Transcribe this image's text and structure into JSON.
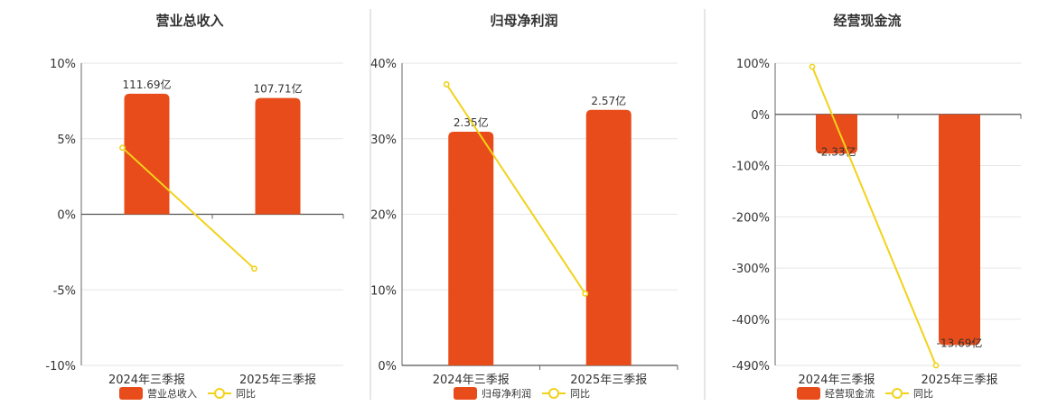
{
  "colors": {
    "bar": "#E84C1A",
    "line": "#F2D21B",
    "marker_fill": "#ffffff"
  },
  "chart_data": [
    {
      "type": "bar",
      "title": "营业总收入",
      "categories": [
        "2024年三季报",
        "2025年三季报"
      ],
      "bar_values": [
        111.69,
        107.71
      ],
      "bar_labels": [
        "111.69亿",
        "107.71亿"
      ],
      "yoy_values": [
        4.4,
        -3.6
      ],
      "y_ticks": [
        "10%",
        "5%",
        "0%",
        "-5%",
        "-10%"
      ],
      "y_tick_values": [
        10,
        5,
        0,
        -5,
        -10
      ],
      "ylim": [
        -10,
        10
      ],
      "bar_scale_max": 140,
      "legend": [
        "营业总收入",
        "同比"
      ]
    },
    {
      "type": "bar",
      "title": "归母净利润",
      "categories": [
        "2024年三季报",
        "2025年三季报"
      ],
      "bar_values": [
        2.35,
        2.57
      ],
      "bar_labels": [
        "2.35亿",
        "2.57亿"
      ],
      "yoy_values": [
        37.2,
        9.5
      ],
      "y_ticks": [
        "40%",
        "30%",
        "20%",
        "10%",
        "0%"
      ],
      "y_tick_values": [
        40,
        30,
        20,
        10,
        0
      ],
      "ylim": [
        0,
        40
      ],
      "bar_scale_max": 3.04,
      "legend": [
        "归母净利润",
        "同比"
      ]
    },
    {
      "type": "bar",
      "title": "经营现金流",
      "categories": [
        "2024年三季报",
        "2025年三季报"
      ],
      "bar_values": [
        -2.33,
        -13.69
      ],
      "bar_labels": [
        "-2.33亿",
        "-13.69亿"
      ],
      "yoy_values": [
        93,
        -490
      ],
      "y_ticks": [
        "100%",
        "0%",
        "-100%",
        "-200%",
        "-300%",
        "-400%",
        "-490%"
      ],
      "y_tick_values": [
        100,
        0,
        -100,
        -200,
        -300,
        -400,
        -490
      ],
      "ylim": [
        -490,
        100
      ],
      "bar_scale_min": -14.9,
      "legend": [
        "经营现金流",
        "同比"
      ]
    }
  ]
}
